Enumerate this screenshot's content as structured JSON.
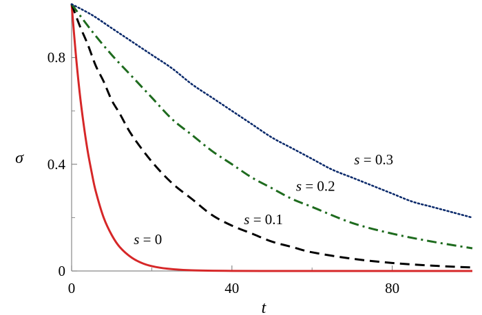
{
  "chart_data": {
    "type": "line",
    "xlabel": "t",
    "ylabel": "σ",
    "xlim": [
      0,
      100
    ],
    "ylim": [
      0,
      1
    ],
    "x_ticks": [
      0,
      40,
      80
    ],
    "x_tick_labels": [
      "0",
      "40",
      "80"
    ],
    "x_minor_ticks": [
      20,
      60
    ],
    "y_ticks": [
      0,
      0.4,
      0.8
    ],
    "y_tick_labels": [
      "0",
      "0.4",
      "0.8"
    ],
    "y_minor_ticks": [
      0.2,
      0.6
    ],
    "grid": false,
    "series": [
      {
        "name": "s = 0",
        "color": "#d62728",
        "style": "solid",
        "x": [
          0,
          1,
          2,
          3,
          4,
          5,
          6,
          8,
          10,
          12,
          15,
          18,
          21,
          25,
          30,
          40,
          50,
          60,
          70,
          80,
          90,
          100
        ],
        "y": [
          1.0,
          0.82,
          0.67,
          0.55,
          0.45,
          0.37,
          0.3,
          0.2,
          0.135,
          0.09,
          0.05,
          0.027,
          0.015,
          0.007,
          0.0025,
          0.0003,
          0.0,
          0.0,
          0.0,
          0.0,
          0.0,
          0.0
        ]
      },
      {
        "name": "s = 0.1",
        "color": "#000000",
        "style": "dashed",
        "x": [
          0,
          2,
          4,
          6,
          8,
          10,
          12,
          15,
          20,
          25,
          30,
          35,
          40,
          45,
          50,
          55,
          60,
          70,
          80,
          90,
          100
        ],
        "y": [
          1.0,
          0.92,
          0.85,
          0.77,
          0.71,
          0.64,
          0.59,
          0.51,
          0.41,
          0.33,
          0.27,
          0.21,
          0.17,
          0.14,
          0.11,
          0.09,
          0.07,
          0.046,
          0.03,
          0.02,
          0.013
        ]
      },
      {
        "name": "s = 0.2",
        "color": "#1e6b1e",
        "style": "dashdot",
        "x": [
          0,
          5,
          10,
          15,
          20,
          25,
          30,
          35,
          40,
          45,
          50,
          55,
          60,
          70,
          80,
          90,
          100
        ],
        "y": [
          1.0,
          0.9,
          0.81,
          0.73,
          0.65,
          0.57,
          0.51,
          0.45,
          0.4,
          0.35,
          0.31,
          0.27,
          0.24,
          0.18,
          0.14,
          0.11,
          0.085
        ]
      },
      {
        "name": "s = 0.3",
        "color": "#0b2a6b",
        "style": "dotted",
        "x": [
          0,
          5,
          10,
          15,
          20,
          25,
          30,
          35,
          40,
          45,
          50,
          55,
          60,
          65,
          70,
          75,
          80,
          85,
          90,
          95,
          100
        ],
        "y": [
          1.0,
          0.96,
          0.91,
          0.86,
          0.81,
          0.76,
          0.7,
          0.65,
          0.6,
          0.55,
          0.5,
          0.46,
          0.42,
          0.38,
          0.35,
          0.32,
          0.29,
          0.26,
          0.24,
          0.22,
          0.2
        ]
      }
    ],
    "annotations": [
      {
        "var": "s",
        "rest": " = 0",
        "series": "s = 0",
        "x": 15.5,
        "y": 0.1
      },
      {
        "var": "s",
        "rest": " = 0.1",
        "series": "s = 0.1",
        "x": 43,
        "y": 0.175
      },
      {
        "var": "s",
        "rest": " = 0.2",
        "series": "s = 0.2",
        "x": 56,
        "y": 0.3
      },
      {
        "var": "s",
        "rest": " = 0.3",
        "series": "s = 0.3",
        "x": 70.5,
        "y": 0.4
      }
    ]
  }
}
